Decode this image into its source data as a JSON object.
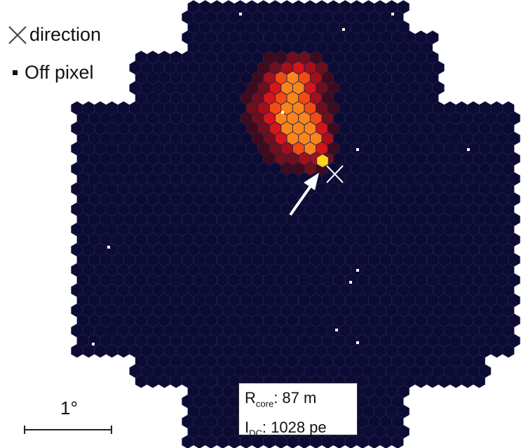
{
  "legend": {
    "direction_label": "direction",
    "off_pixel_label": "Off pixel",
    "direction_icon": "cross-icon",
    "off_pixel_icon": "square-icon"
  },
  "info": {
    "rcore_symbol": "R",
    "rcore_sub": "core",
    "rcore_value": ": 87 m",
    "idc_symbol": "I",
    "idc_sub": "DC",
    "idc_value": ": 1028 pe"
  },
  "scale": {
    "label": "1°"
  },
  "colors": {
    "background_pixel": "#0b0b33",
    "pixel_edge": "#1d1d4a",
    "off_pixel": "#ffffff",
    "arrow": "#ffffff",
    "direction_marker": "#ffffff",
    "signal_scale": [
      "#3d0b1d",
      "#6e0f1c",
      "#a3101a",
      "#d4151a",
      "#ef4b12",
      "#f7851c",
      "#ffd21c"
    ]
  }
}
